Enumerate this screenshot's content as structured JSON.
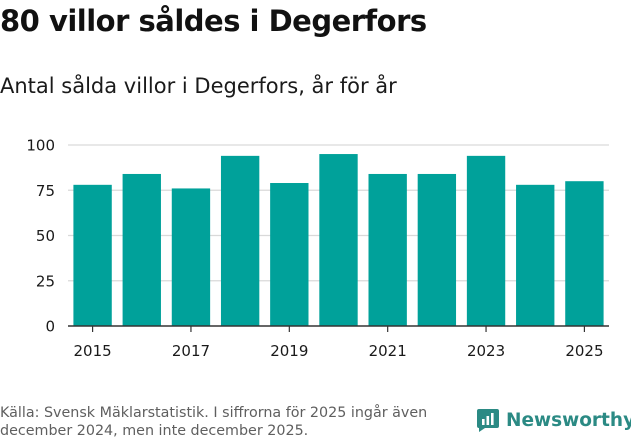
{
  "title": "80 villor såldes i Degerfors",
  "subtitle": "Antal sålda villor i Degerfors, år för år",
  "source": "Källa: Svensk Mäklarstatistik. I siffrorna för 2025 ingår även december 2024, men inte december 2025.",
  "brand": {
    "name": "Newsworthy",
    "icon": "newsworthy-logo-icon",
    "color": "#2b8a84"
  },
  "colors": {
    "bar": "#00a19a",
    "grid": "#d9d9d9",
    "axis": "#333333"
  },
  "chart_data": {
    "type": "bar",
    "categories": [
      "2015",
      "2016",
      "2017",
      "2018",
      "2019",
      "2020",
      "2021",
      "2022",
      "2023",
      "2024",
      "2025"
    ],
    "series": [
      {
        "values": [
          78,
          84,
          76,
          94,
          79,
          95,
          84,
          84,
          94,
          78,
          80
        ]
      }
    ],
    "ylim": [
      0,
      100
    ],
    "yticks": [
      "0",
      "25",
      "50",
      "75",
      "100"
    ],
    "xtick_labels": [
      "2015",
      "2017",
      "2019",
      "2021",
      "2023",
      "2025"
    ],
    "xlabel": "",
    "ylabel": "",
    "grid": true
  }
}
